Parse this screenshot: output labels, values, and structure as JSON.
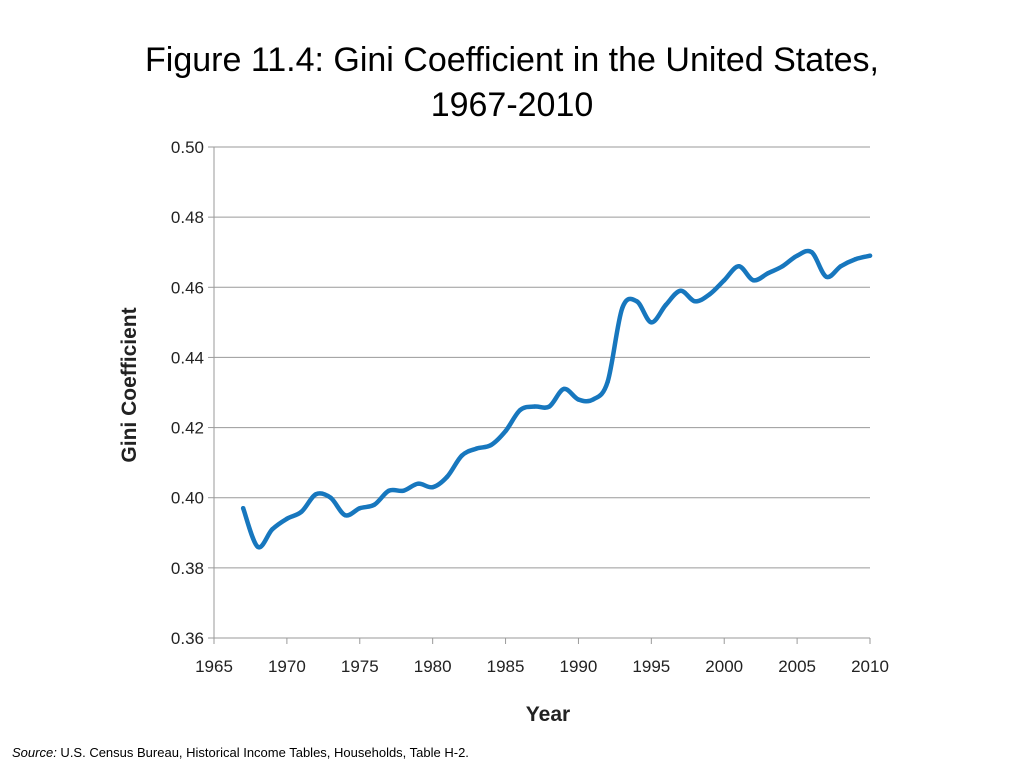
{
  "slide": {
    "title_line1": "Figure 11.4: Gini Coefficient in the United States,",
    "title_line2": "1967-2010"
  },
  "source": {
    "label": "Source:",
    "text": " U.S. Census Bureau, Historical Income Tables, Households, Table H-2."
  },
  "colors": {
    "line": "#1777be",
    "grid": "#9a9a9a",
    "axis_text": "#222222"
  },
  "chart_data": {
    "type": "line",
    "title": "Figure 11.4: Gini Coefficient in the United States, 1967-2010",
    "xlabel": "Year",
    "ylabel": "Gini Coefficient",
    "xlim": [
      1965,
      2010
    ],
    "ylim": [
      0.36,
      0.5
    ],
    "x_ticks": [
      1965,
      1970,
      1975,
      1980,
      1985,
      1990,
      1995,
      2000,
      2005,
      2010
    ],
    "y_ticks": [
      "0.36",
      "0.38",
      "0.40",
      "0.42",
      "0.44",
      "0.46",
      "0.48",
      "0.50"
    ],
    "grid": "horizontal",
    "legend": "none",
    "series": [
      {
        "x": [
          1967,
          1968,
          1969,
          1970,
          1971,
          1972,
          1973,
          1974,
          1975,
          1976,
          1977,
          1978,
          1979,
          1980,
          1981,
          1982,
          1983,
          1984,
          1985,
          1986,
          1987,
          1988,
          1989,
          1990,
          1991,
          1992,
          1993,
          1994,
          1995,
          1996,
          1997,
          1998,
          1999,
          2000,
          2001,
          2002,
          2003,
          2004,
          2005,
          2006,
          2007,
          2008,
          2009,
          2010
        ],
        "y": [
          0.397,
          0.386,
          0.391,
          0.394,
          0.396,
          0.401,
          0.4,
          0.395,
          0.397,
          0.398,
          0.402,
          0.402,
          0.404,
          0.403,
          0.406,
          0.412,
          0.414,
          0.415,
          0.419,
          0.425,
          0.426,
          0.426,
          0.431,
          0.428,
          0.428,
          0.433,
          0.454,
          0.456,
          0.45,
          0.455,
          0.459,
          0.456,
          0.458,
          0.462,
          0.466,
          0.462,
          0.464,
          0.466,
          0.469,
          0.47,
          0.463,
          0.466,
          0.468,
          0.469
        ]
      }
    ]
  }
}
